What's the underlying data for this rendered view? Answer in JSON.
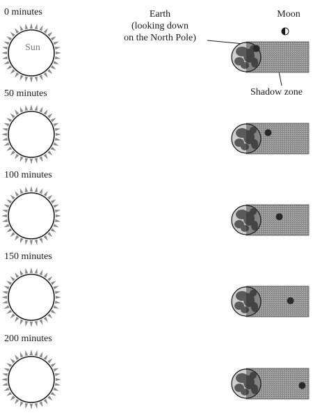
{
  "frames": [
    {
      "time_label": "0 minutes",
      "moon_offset": -0.02
    },
    {
      "time_label": "50 minutes",
      "moon_offset": 0.22
    },
    {
      "time_label": "100 minutes",
      "moon_offset": 0.45
    },
    {
      "time_label": "150 minutes",
      "moon_offset": 0.68
    },
    {
      "time_label": "200 minutes",
      "moon_offset": 0.92
    }
  ],
  "sun_label": "Sun",
  "annotations": {
    "earth": "Earth\n(looking down\non the North Pole)",
    "moon": "Moon",
    "shadow": "Shadow zone"
  },
  "colors": {
    "ink": "#1a1a1a",
    "shadow_fill": "#9a9a9a",
    "earth_land": "#5a5a5a",
    "earth_ocean": "#cfcfcf",
    "sun_rays": "#888888",
    "moon": "#2a2a2a"
  }
}
